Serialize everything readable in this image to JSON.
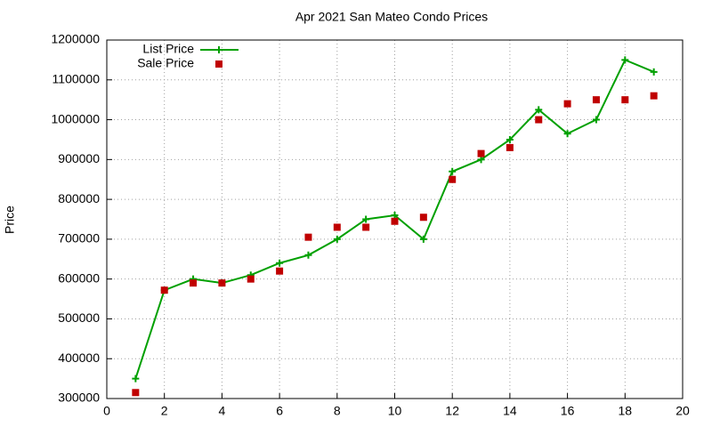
{
  "chart_data": {
    "type": "line",
    "title": "Apr 2021 San Mateo Condo Prices",
    "y_label": "Price",
    "x": [
      1,
      2,
      3,
      4,
      5,
      6,
      7,
      8,
      9,
      10,
      11,
      12,
      13,
      14,
      15,
      16,
      17,
      18,
      19
    ],
    "series": [
      {
        "name": "List Price",
        "color": "#00a000",
        "line": true,
        "marker": "plus",
        "values": [
          350000,
          572000,
          600000,
          590000,
          610000,
          640000,
          660000,
          700000,
          750000,
          760000,
          700000,
          870000,
          900000,
          950000,
          1025000,
          965000,
          1000000,
          1150000,
          1120000
        ]
      },
      {
        "name": "Sale Price",
        "color": "#c00000",
        "line": false,
        "marker": "square",
        "values": [
          315000,
          572000,
          590000,
          590000,
          600000,
          620000,
          705000,
          730000,
          730000,
          745000,
          755000,
          850000,
          915000,
          930000,
          1000000,
          1040000,
          1050000,
          1050000,
          1060000
        ]
      }
    ],
    "xlim": [
      0,
      20
    ],
    "xticks": [
      0,
      2,
      4,
      6,
      8,
      10,
      12,
      14,
      16,
      18,
      20
    ],
    "ylim": [
      300000,
      1200000
    ],
    "yticks": [
      300000,
      400000,
      500000,
      600000,
      700000,
      800000,
      900000,
      1000000,
      1100000,
      1200000
    ],
    "grid": true,
    "legend": "top-left"
  }
}
